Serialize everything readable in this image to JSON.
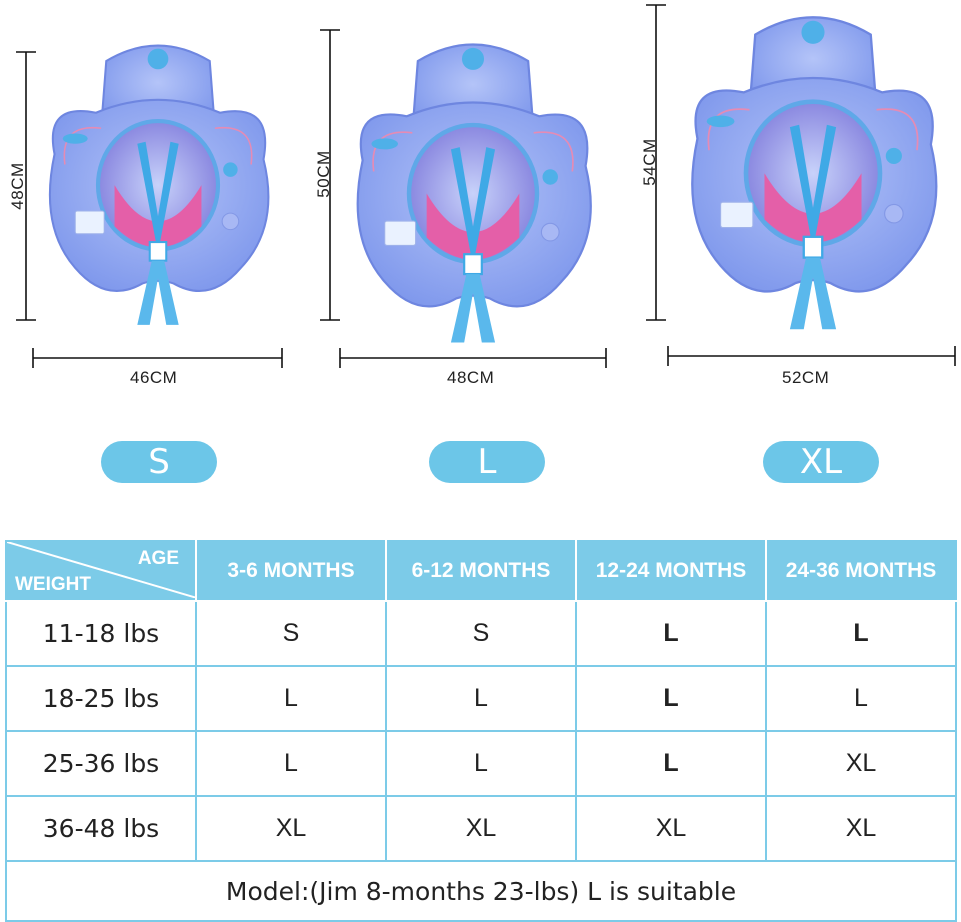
{
  "products": [
    {
      "size": "S",
      "height": "48CM",
      "width": "46CM"
    },
    {
      "size": "L",
      "height": "50CM",
      "width": "48CM"
    },
    {
      "size": "XL",
      "height": "54CM",
      "width": "52CM"
    }
  ],
  "table": {
    "corner_top": "AGE",
    "corner_bottom": "WEIGHT",
    "age_headers": [
      "3-6 MONTHS",
      "6-12 MONTHS",
      "12-24 MONTHS",
      "24-36 MONTHS"
    ],
    "rows": [
      {
        "weight": "11-18 lbs",
        "sizes": [
          "S",
          "S",
          "L",
          "L"
        ]
      },
      {
        "weight": "18-25 lbs",
        "sizes": [
          "L",
          "L",
          "L",
          "L"
        ]
      },
      {
        "weight": "25-36 lbs",
        "sizes": [
          "L",
          "L",
          "L",
          "XL"
        ]
      },
      {
        "weight": "36-48 lbs",
        "sizes": [
          "XL",
          "XL",
          "XL",
          "XL"
        ]
      }
    ],
    "footer": "Model:(Jim 8-months 23-lbs) L is suitable"
  },
  "colors": {
    "accent": "#7ccbe8",
    "pill": "#6cc6e8",
    "float_body": "#8fa6f0",
    "float_inner": "#6fb8f0",
    "seat": "#e45fa8",
    "straps": "#3fa9e6"
  },
  "icons": [
    "baby-swim-float-image"
  ]
}
